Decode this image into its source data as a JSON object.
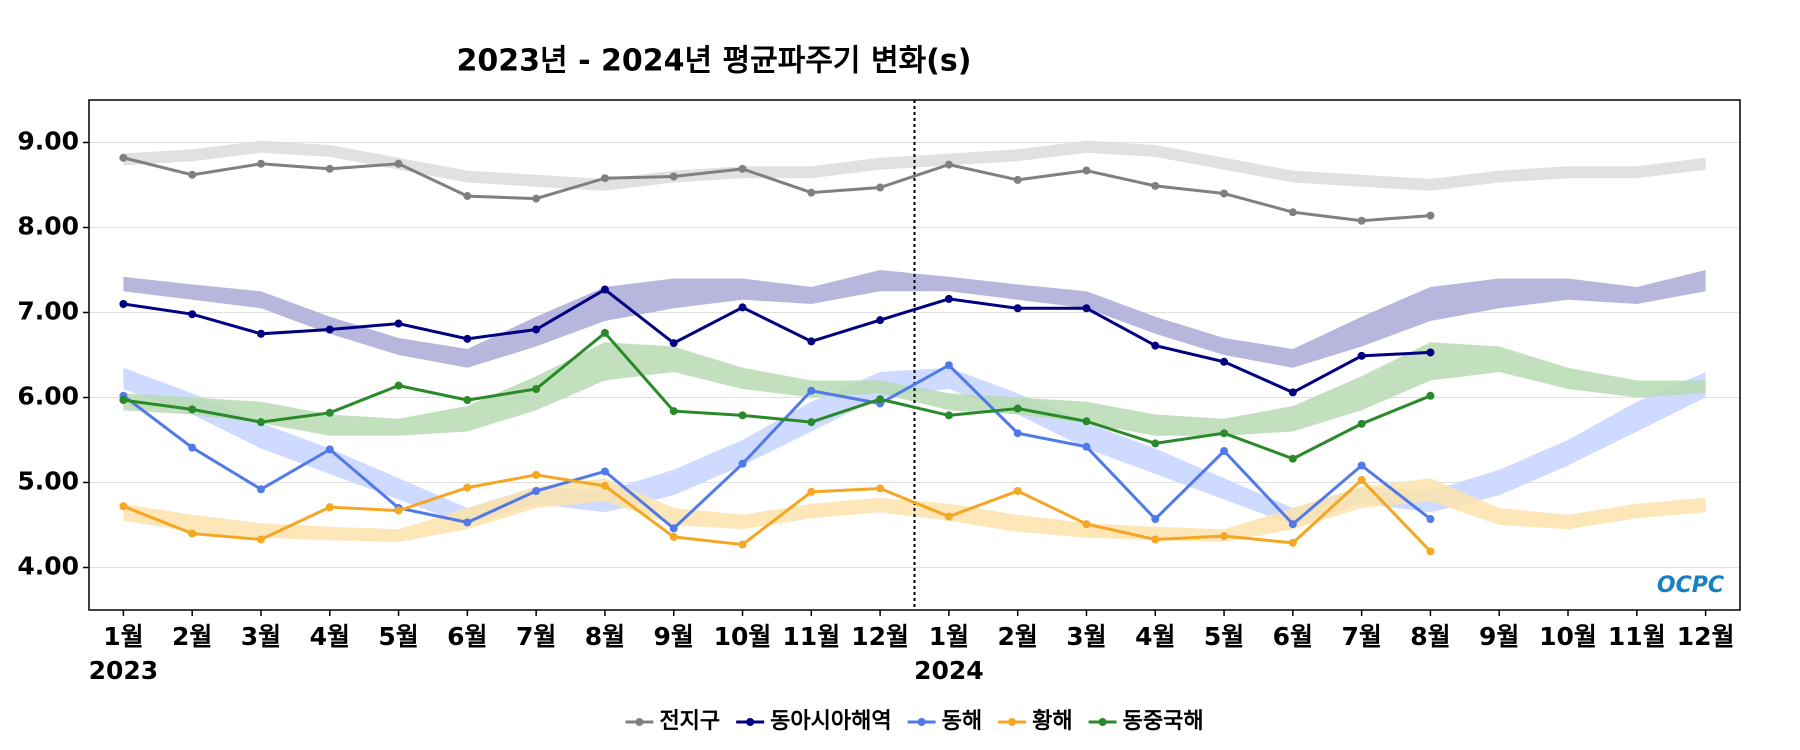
{
  "chart_data": {
    "type": "line",
    "title": "2023년 - 2024년 평균파주기 변화(s)",
    "categories": [
      "1월",
      "2월",
      "3월",
      "4월",
      "5월",
      "6월",
      "7월",
      "8월",
      "9월",
      "10월",
      "11월",
      "12월",
      "1월",
      "2월",
      "3월",
      "4월",
      "5월",
      "6월",
      "7월",
      "8월",
      "9월",
      "10월",
      "11월",
      "12월"
    ],
    "category_years": [
      "2023",
      null,
      null,
      null,
      null,
      null,
      null,
      null,
      null,
      null,
      null,
      null,
      "2024",
      null,
      null,
      null,
      null,
      null,
      null,
      null,
      null,
      null,
      null,
      null
    ],
    "ylim": [
      3.5,
      9.5
    ],
    "yticks": [
      {
        "value": 4,
        "label": "4.00"
      },
      {
        "value": 5,
        "label": "5.00"
      },
      {
        "value": 6,
        "label": "6.00"
      },
      {
        "value": 7,
        "label": "7.00"
      },
      {
        "value": 8,
        "label": "8.00"
      },
      {
        "value": 9,
        "label": "9.00"
      }
    ],
    "grid": true,
    "legend": "bottom",
    "logo": "OCPC",
    "series": [
      {
        "name": "전지구",
        "color": "#808080",
        "values": [
          8.82,
          8.62,
          8.75,
          8.69,
          8.75,
          8.37,
          8.34,
          8.58,
          8.6,
          8.69,
          8.41,
          8.47,
          8.74,
          8.56,
          8.67,
          8.49,
          8.4,
          8.18,
          8.08,
          8.14,
          null,
          null,
          null,
          null
        ]
      },
      {
        "name": "동아시아해역",
        "color": "#000080",
        "values": [
          7.1,
          6.98,
          6.75,
          6.8,
          6.87,
          6.69,
          6.8,
          7.27,
          6.64,
          7.06,
          6.66,
          6.91,
          7.16,
          7.05,
          7.05,
          6.61,
          6.42,
          6.06,
          6.49,
          6.53,
          null,
          null,
          null,
          null
        ]
      },
      {
        "name": "동해",
        "color": "#4f7ae8",
        "values": [
          6.02,
          5.41,
          4.92,
          5.39,
          4.7,
          4.53,
          4.9,
          5.13,
          4.46,
          5.22,
          6.08,
          5.93,
          6.38,
          5.58,
          5.42,
          4.57,
          5.37,
          4.51,
          5.2,
          4.57,
          null,
          null,
          null,
          null
        ]
      },
      {
        "name": "황해",
        "color": "#f5a623",
        "values": [
          4.72,
          4.4,
          4.33,
          4.71,
          4.67,
          4.94,
          5.09,
          4.96,
          4.36,
          4.27,
          4.89,
          4.93,
          4.6,
          4.9,
          4.51,
          4.33,
          4.37,
          4.29,
          5.03,
          4.19,
          null,
          null,
          null,
          null
        ]
      },
      {
        "name": "동중국해",
        "color": "#2a8a2a",
        "values": [
          5.97,
          5.86,
          5.71,
          5.82,
          6.14,
          5.97,
          6.1,
          6.76,
          5.84,
          5.79,
          5.71,
          5.98,
          5.79,
          5.87,
          5.72,
          5.46,
          5.58,
          5.28,
          5.69,
          6.02,
          null,
          null,
          null,
          null
        ]
      }
    ],
    "bands": [
      {
        "color": "#dcdcdc",
        "lower": [
          8.73,
          8.78,
          8.88,
          8.83,
          8.68,
          8.53,
          8.48,
          8.43,
          8.53,
          8.58,
          8.58,
          8.68,
          8.73,
          8.78,
          8.88,
          8.83,
          8.68,
          8.53,
          8.48,
          8.43,
          8.53,
          8.58,
          8.58,
          8.68
        ],
        "upper": [
          8.87,
          8.92,
          9.02,
          8.97,
          8.82,
          8.67,
          8.62,
          8.57,
          8.67,
          8.72,
          8.72,
          8.82,
          8.87,
          8.92,
          9.02,
          8.97,
          8.82,
          8.67,
          8.62,
          8.57,
          8.67,
          8.72,
          8.72,
          8.82
        ]
      },
      {
        "color": "#aaaad8",
        "lower": [
          7.25,
          7.15,
          7.05,
          6.75,
          6.5,
          6.35,
          6.6,
          6.9,
          7.05,
          7.15,
          7.1,
          7.25,
          7.25,
          7.15,
          7.05,
          6.75,
          6.5,
          6.35,
          6.6,
          6.9,
          7.05,
          7.15,
          7.1,
          7.25
        ],
        "upper": [
          7.42,
          7.33,
          7.25,
          6.95,
          6.7,
          6.57,
          6.95,
          7.3,
          7.4,
          7.4,
          7.3,
          7.5,
          7.42,
          7.33,
          7.25,
          6.95,
          6.7,
          6.57,
          6.95,
          7.3,
          7.4,
          7.4,
          7.3,
          7.5
        ]
      },
      {
        "color": "#c6d4ff",
        "lower": [
          6.1,
          5.8,
          5.4,
          5.1,
          4.8,
          4.5,
          4.75,
          4.65,
          4.85,
          5.2,
          5.6,
          6.0,
          6.1,
          5.8,
          5.4,
          5.1,
          4.8,
          4.5,
          4.75,
          4.65,
          4.85,
          5.2,
          5.6,
          6.0
        ],
        "upper": [
          6.35,
          6.05,
          5.7,
          5.4,
          5.05,
          4.7,
          4.95,
          4.9,
          5.15,
          5.5,
          5.95,
          6.3,
          6.35,
          6.05,
          5.7,
          5.4,
          5.05,
          4.7,
          4.95,
          4.9,
          5.15,
          5.5,
          5.95,
          6.3
        ]
      },
      {
        "color": "#fde3ad",
        "lower": [
          4.55,
          4.42,
          4.35,
          4.32,
          4.3,
          4.45,
          4.7,
          4.78,
          4.5,
          4.45,
          4.58,
          4.65,
          4.55,
          4.42,
          4.35,
          4.32,
          4.3,
          4.45,
          4.7,
          4.78,
          4.5,
          4.45,
          4.58,
          4.65
        ],
        "upper": [
          4.75,
          4.62,
          4.52,
          4.48,
          4.45,
          4.7,
          4.95,
          5.05,
          4.7,
          4.62,
          4.75,
          4.82,
          4.75,
          4.62,
          4.52,
          4.48,
          4.45,
          4.7,
          4.95,
          5.05,
          4.7,
          4.62,
          4.75,
          4.82
        ]
      },
      {
        "color": "#b7dbb2",
        "lower": [
          5.85,
          5.8,
          5.7,
          5.55,
          5.55,
          5.6,
          5.85,
          6.2,
          6.3,
          6.1,
          6.0,
          6.05,
          5.85,
          5.8,
          5.7,
          5.55,
          5.55,
          5.6,
          5.85,
          6.2,
          6.3,
          6.1,
          6.0,
          6.05
        ],
        "upper": [
          6.05,
          6.0,
          5.95,
          5.8,
          5.75,
          5.9,
          6.25,
          6.65,
          6.6,
          6.35,
          6.2,
          6.2,
          6.05,
          6.0,
          5.95,
          5.8,
          5.75,
          5.9,
          6.25,
          6.65,
          6.6,
          6.35,
          6.2,
          6.2
        ]
      }
    ]
  }
}
